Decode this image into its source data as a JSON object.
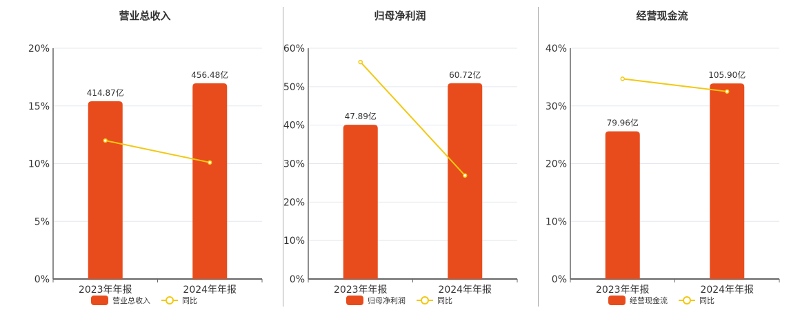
{
  "colors": {
    "bar": "#E84C1C",
    "line": "#F2C811",
    "grid": "#E3E8EE",
    "axis": "#666666",
    "text": "#333333"
  },
  "chart_data": [
    {
      "type": "bar+line",
      "title": "营业总收入",
      "categories": [
        "2023年年报",
        "2024年年报"
      ],
      "ylim": [
        0,
        20
      ],
      "yticks": [
        "0%",
        "5%",
        "10%",
        "15%",
        "20%"
      ],
      "bar_series": {
        "name": "营业总收入",
        "labels": [
          "414.87亿",
          "456.48亿"
        ],
        "values": [
          414.87,
          456.48
        ],
        "heights_pct": [
          15.4,
          16.96
        ]
      },
      "line_series": {
        "name": "同比",
        "values": [
          12.0,
          10.1
        ]
      },
      "legend": [
        "营业总收入",
        "同比"
      ],
      "legend_position": "bottom",
      "grid": true
    },
    {
      "type": "bar+line",
      "title": "归母净利润",
      "categories": [
        "2023年年报",
        "2024年年报"
      ],
      "ylim": [
        0,
        60
      ],
      "yticks": [
        "0%",
        "10%",
        "20%",
        "30%",
        "40%",
        "50%",
        "60%"
      ],
      "bar_series": {
        "name": "归母净利润",
        "labels": [
          "47.89亿",
          "60.72亿"
        ],
        "values": [
          47.89,
          60.72
        ],
        "heights_pct": [
          40.1,
          50.9
        ]
      },
      "line_series": {
        "name": "同比",
        "values": [
          56.4,
          26.9
        ]
      },
      "legend": [
        "归母净利润",
        "同比"
      ],
      "legend_position": "bottom",
      "grid": true
    },
    {
      "type": "bar+line",
      "title": "经营现金流",
      "categories": [
        "2023年年报",
        "2024年年报"
      ],
      "ylim": [
        0,
        40
      ],
      "yticks": [
        "0%",
        "10%",
        "20%",
        "30%",
        "40%"
      ],
      "bar_series": {
        "name": "经营现金流",
        "labels": [
          "79.96亿",
          "105.90亿"
        ],
        "values": [
          79.96,
          105.9
        ],
        "heights_pct": [
          25.6,
          33.9
        ]
      },
      "line_series": {
        "name": "同比",
        "values": [
          34.7,
          32.5
        ]
      },
      "legend": [
        "经营现金流",
        "同比"
      ],
      "legend_position": "bottom",
      "grid": true
    }
  ]
}
